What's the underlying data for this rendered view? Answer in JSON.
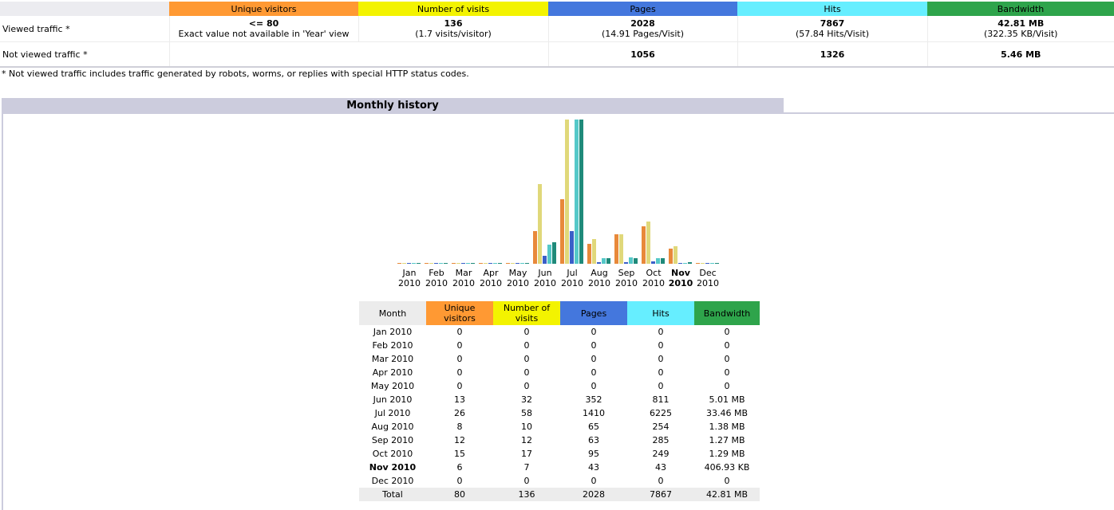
{
  "summary": {
    "headers": {
      "unique_visitors": "Unique visitors",
      "number_of_visits": "Number of visits",
      "pages": "Pages",
      "hits": "Hits",
      "bandwidth": "Bandwidth"
    },
    "viewed": {
      "label": "Viewed traffic *",
      "unique_visitors": "<= 80",
      "unique_visitors_note": "Exact value not available in 'Year' view",
      "visits": "136",
      "visits_note": "(1.7 visits/visitor)",
      "pages": "2028",
      "pages_note": "(14.91 Pages/Visit)",
      "hits": "7867",
      "hits_note": "(57.84 Hits/Visit)",
      "bandwidth": "42.81 MB",
      "bandwidth_note": "(322.35 KB/Visit)"
    },
    "not_viewed": {
      "label": "Not viewed traffic *",
      "pages": "1056",
      "hits": "1326",
      "bandwidth": "5.46 MB"
    },
    "footnote": "* Not viewed traffic includes traffic generated by robots, worms, or replies with special HTTP status codes."
  },
  "monthly_history": {
    "title": "Monthly history",
    "current_month_index": 10,
    "table_headers": {
      "month": "Month",
      "unique_visitors": [
        "Unique",
        "visitors"
      ],
      "number_of_visits": [
        "Number of",
        "visits"
      ],
      "pages": "Pages",
      "hits": "Hits",
      "bandwidth": "Bandwidth"
    },
    "rows": [
      {
        "month": "Jan 2010",
        "uv": "0",
        "visits": "0",
        "pages": "0",
        "hits": "0",
        "bw": "0"
      },
      {
        "month": "Feb 2010",
        "uv": "0",
        "visits": "0",
        "pages": "0",
        "hits": "0",
        "bw": "0"
      },
      {
        "month": "Mar 2010",
        "uv": "0",
        "visits": "0",
        "pages": "0",
        "hits": "0",
        "bw": "0"
      },
      {
        "month": "Apr 2010",
        "uv": "0",
        "visits": "0",
        "pages": "0",
        "hits": "0",
        "bw": "0"
      },
      {
        "month": "May 2010",
        "uv": "0",
        "visits": "0",
        "pages": "0",
        "hits": "0",
        "bw": "0"
      },
      {
        "month": "Jun 2010",
        "uv": "13",
        "visits": "32",
        "pages": "352",
        "hits": "811",
        "bw": "5.01 MB"
      },
      {
        "month": "Jul 2010",
        "uv": "26",
        "visits": "58",
        "pages": "1410",
        "hits": "6225",
        "bw": "33.46 MB"
      },
      {
        "month": "Aug 2010",
        "uv": "8",
        "visits": "10",
        "pages": "65",
        "hits": "254",
        "bw": "1.38 MB"
      },
      {
        "month": "Sep 2010",
        "uv": "12",
        "visits": "12",
        "pages": "63",
        "hits": "285",
        "bw": "1.27 MB"
      },
      {
        "month": "Oct 2010",
        "uv": "15",
        "visits": "17",
        "pages": "95",
        "hits": "249",
        "bw": "1.29 MB"
      },
      {
        "month": "Nov 2010",
        "uv": "6",
        "visits": "7",
        "pages": "43",
        "hits": "43",
        "bw": "406.93 KB"
      },
      {
        "month": "Dec 2010",
        "uv": "0",
        "visits": "0",
        "pages": "0",
        "hits": "0",
        "bw": "0"
      }
    ],
    "total": {
      "label": "Total",
      "uv": "80",
      "visits": "136",
      "pages": "2028",
      "hits": "7867",
      "bw": "42.81 MB"
    }
  },
  "colors": {
    "unique_visitors": "#ff9933",
    "number_of_visits": "#f3f300",
    "pages": "#4477dd",
    "hits": "#66eeff",
    "bandwidth": "#2ea44b"
  },
  "chart_data": {
    "type": "bar",
    "categories": [
      [
        "Jan",
        "2010"
      ],
      [
        "Feb",
        "2010"
      ],
      [
        "Mar",
        "2010"
      ],
      [
        "Apr",
        "2010"
      ],
      [
        "May",
        "2010"
      ],
      [
        "Jun",
        "2010"
      ],
      [
        "Jul",
        "2010"
      ],
      [
        "Aug",
        "2010"
      ],
      [
        "Sep",
        "2010"
      ],
      [
        "Oct",
        "2010"
      ],
      [
        "Nov",
        "2010"
      ],
      [
        "Dec",
        "2010"
      ]
    ],
    "series": [
      {
        "name": "Unique visitors",
        "color": "#e8893a",
        "values": [
          0,
          0,
          0,
          0,
          0,
          13,
          26,
          8,
          12,
          15,
          6,
          0
        ]
      },
      {
        "name": "Number of visits",
        "color": "#e0d87a",
        "values": [
          0,
          0,
          0,
          0,
          0,
          32,
          58,
          10,
          12,
          17,
          7,
          0
        ]
      },
      {
        "name": "Pages",
        "color": "#3a5fc8",
        "values": [
          0,
          0,
          0,
          0,
          0,
          352,
          1410,
          65,
          63,
          95,
          43,
          0
        ]
      },
      {
        "name": "Hits",
        "color": "#55c8c8",
        "values": [
          0,
          0,
          0,
          0,
          0,
          811,
          6225,
          254,
          285,
          249,
          43,
          0
        ]
      },
      {
        "name": "Bandwidth",
        "color": "#1f8a7a",
        "values": [
          0,
          0,
          0,
          0,
          0,
          5.01,
          33.46,
          1.38,
          1.27,
          1.29,
          0.4,
          0
        ]
      }
    ],
    "scale_groups": [
      [
        0,
        1
      ],
      [
        2,
        3
      ],
      [
        4
      ]
    ]
  }
}
